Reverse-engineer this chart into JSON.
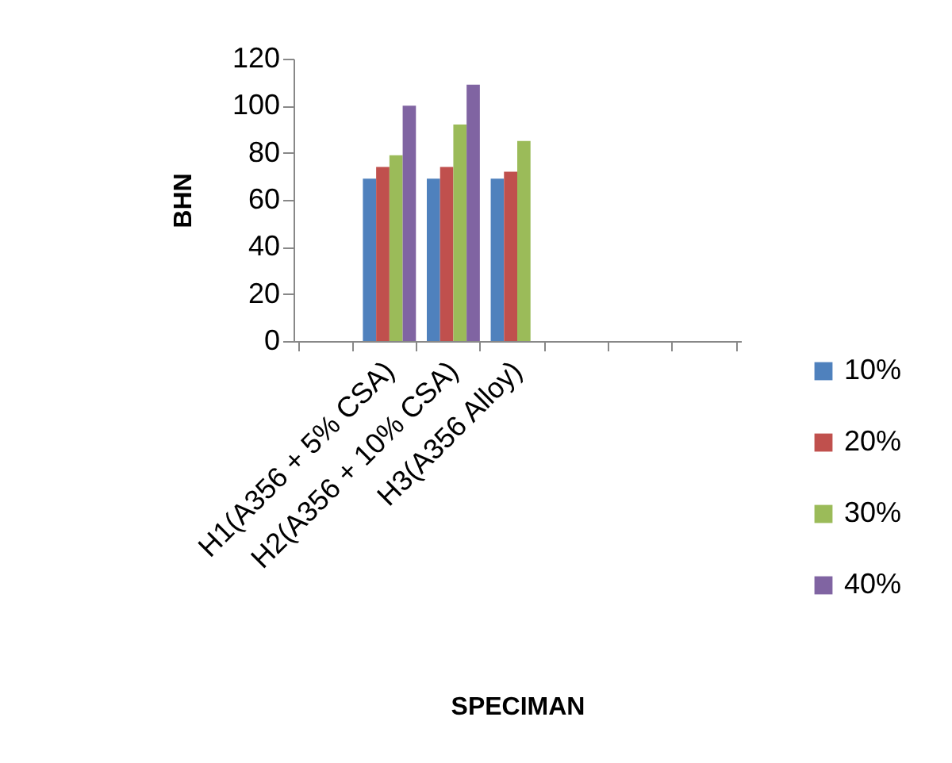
{
  "chart_data": {
    "type": "bar",
    "xlabel": "SPECIMAN",
    "ylabel": "BHN",
    "categories": [
      null,
      "H1(A356 + 5% CSA)",
      "H2(A356 + 10% CSA)",
      "H3(A356 Alloy)",
      null,
      null,
      null
    ],
    "series": [
      {
        "name": "10%",
        "color": "#4f81bd",
        "values": [
          null,
          69,
          69,
          69,
          null,
          null,
          null
        ]
      },
      {
        "name": "20%",
        "color": "#c0504d",
        "values": [
          null,
          74,
          74,
          72,
          null,
          null,
          null
        ]
      },
      {
        "name": "30%",
        "color": "#9bbb59",
        "values": [
          null,
          79,
          92,
          85,
          null,
          null,
          null
        ]
      },
      {
        "name": "40%",
        "color": "#8064a2",
        "values": [
          null,
          100,
          109,
          null,
          null,
          null,
          null
        ]
      }
    ],
    "ylim": [
      0,
      120
    ],
    "yticks": [
      0,
      20,
      40,
      60,
      80,
      100,
      120
    ],
    "grid": false,
    "legend": "right"
  }
}
